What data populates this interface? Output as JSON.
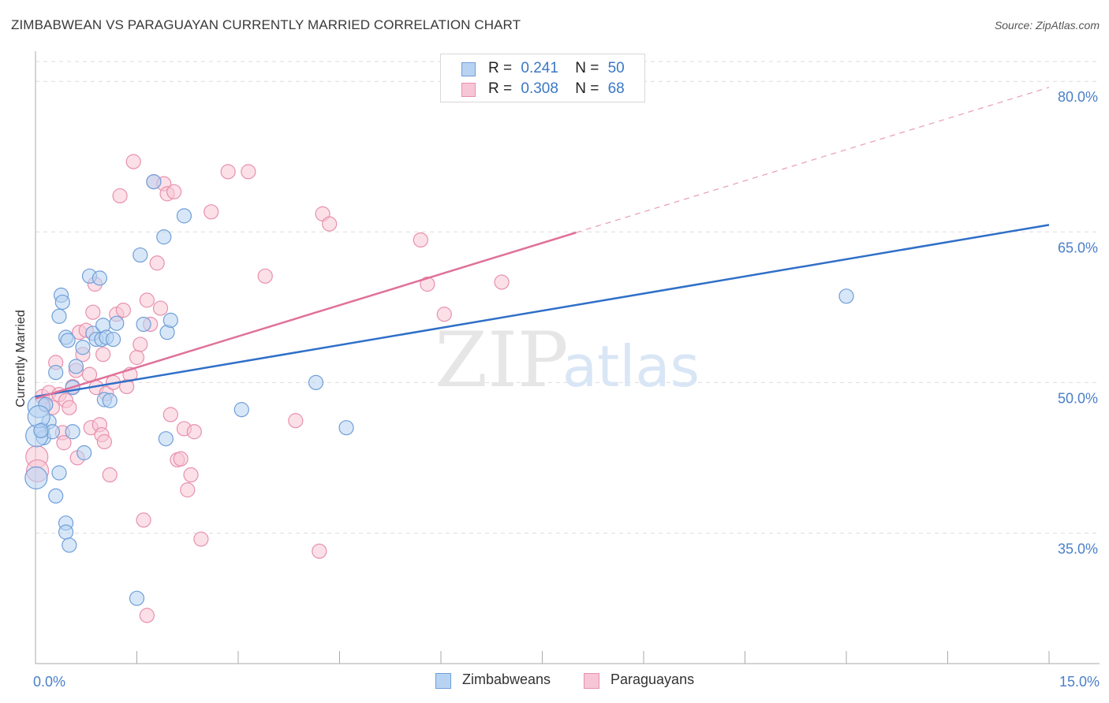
{
  "header": {
    "title": "ZIMBABWEAN VS PARAGUAYAN CURRENTLY MARRIED CORRELATION CHART",
    "source": "Source: ZipAtlas.com"
  },
  "watermark": {
    "zip": "ZIP",
    "atlas": "atlas"
  },
  "legend": {
    "r_label": "R =",
    "n_label": "N =",
    "rows": [
      {
        "r": "0.241",
        "n": "50"
      },
      {
        "r": "0.308",
        "n": "68"
      }
    ]
  },
  "colors": {
    "blue_fill": "#b8d3f2",
    "blue_stroke": "#6f9fd8",
    "blue_line": "#2f6fc8",
    "pink_fill": "#f7c6d6",
    "pink_stroke": "#e890ae",
    "pink_line": "#e0719a",
    "tick_label": "#4a7fc9",
    "grid": "#dddddd"
  },
  "chart_data": {
    "type": "scatter",
    "title": "ZIMBABWEAN VS PARAGUAYAN CURRENTLY MARRIED CORRELATION CHART",
    "xlabel": "",
    "ylabel": "Currently Married",
    "xlim": [
      0,
      15
    ],
    "ylim": [
      22,
      83
    ],
    "x_tick_labels": [
      "0.0%",
      "15.0%"
    ],
    "y_ticks": [
      35,
      50,
      65,
      80
    ],
    "y_tick_labels": [
      "35.0%",
      "50.0%",
      "65.0%",
      "80.0%"
    ],
    "grid": true,
    "legend_position": "top-center",
    "series": [
      {
        "name": "Zimbabweans",
        "r": 0.241,
        "n": 50,
        "trend": {
          "x": [
            0,
            15
          ],
          "y": [
            48.6,
            65.7
          ],
          "dashed_from": null
        },
        "points": [
          [
            0.05,
            47.6
          ],
          [
            0.1,
            45.3
          ],
          [
            0.12,
            44.5
          ],
          [
            0.15,
            47.8
          ],
          [
            0.2,
            46.1
          ],
          [
            0.25,
            45.1
          ],
          [
            0.3,
            38.7
          ],
          [
            0.35,
            41.0
          ],
          [
            0.3,
            51.0
          ],
          [
            0.35,
            56.6
          ],
          [
            0.38,
            58.7
          ],
          [
            0.4,
            58.0
          ],
          [
            0.45,
            54.5
          ],
          [
            0.48,
            54.2
          ],
          [
            0.55,
            45.1
          ],
          [
            0.55,
            49.5
          ],
          [
            0.6,
            51.6
          ],
          [
            0.7,
            53.5
          ],
          [
            0.72,
            43.0
          ],
          [
            0.8,
            60.6
          ],
          [
            0.85,
            54.9
          ],
          [
            0.9,
            54.3
          ],
          [
            0.95,
            60.4
          ],
          [
            0.98,
            54.3
          ],
          [
            1.0,
            55.7
          ],
          [
            1.02,
            48.3
          ],
          [
            1.05,
            54.5
          ],
          [
            1.1,
            48.2
          ],
          [
            1.15,
            54.3
          ],
          [
            1.2,
            55.9
          ],
          [
            0.45,
            36.0
          ],
          [
            0.45,
            35.1
          ],
          [
            0.5,
            33.8
          ],
          [
            1.55,
            62.7
          ],
          [
            1.6,
            55.8
          ],
          [
            1.75,
            70.0
          ],
          [
            1.9,
            64.5
          ],
          [
            1.93,
            44.4
          ],
          [
            1.95,
            55.0
          ],
          [
            2.0,
            56.2
          ],
          [
            2.2,
            66.6
          ],
          [
            3.05,
            47.3
          ],
          [
            4.15,
            50.0
          ],
          [
            4.6,
            45.5
          ],
          [
            12.0,
            58.6
          ],
          [
            1.5,
            28.5
          ],
          [
            0.01,
            40.5
          ],
          [
            0.02,
            44.7
          ],
          [
            0.05,
            46.6
          ],
          [
            0.08,
            45.2
          ]
        ]
      },
      {
        "name": "Paraguayans",
        "r": 0.308,
        "n": 68,
        "trend": {
          "x": [
            0,
            15
          ],
          "y": [
            48.4,
            79.4
          ],
          "dashed_from": 8.0
        },
        "points": [
          [
            0.02,
            42.6
          ],
          [
            0.03,
            41.2
          ],
          [
            0.1,
            48.6
          ],
          [
            0.15,
            47.8
          ],
          [
            0.2,
            49.0
          ],
          [
            0.25,
            47.5
          ],
          [
            0.3,
            52.0
          ],
          [
            0.35,
            48.8
          ],
          [
            0.4,
            45.0
          ],
          [
            0.42,
            44.0
          ],
          [
            0.45,
            48.2
          ],
          [
            0.5,
            47.5
          ],
          [
            0.55,
            49.6
          ],
          [
            0.6,
            51.2
          ],
          [
            0.62,
            42.5
          ],
          [
            0.65,
            55.0
          ],
          [
            0.7,
            52.8
          ],
          [
            0.75,
            55.2
          ],
          [
            0.8,
            50.8
          ],
          [
            0.82,
            45.5
          ],
          [
            0.85,
            57.0
          ],
          [
            0.88,
            59.8
          ],
          [
            0.9,
            49.5
          ],
          [
            0.95,
            45.8
          ],
          [
            0.98,
            44.8
          ],
          [
            1.0,
            52.8
          ],
          [
            1.02,
            44.1
          ],
          [
            1.05,
            48.9
          ],
          [
            1.1,
            40.8
          ],
          [
            1.15,
            50.0
          ],
          [
            1.2,
            56.8
          ],
          [
            1.25,
            68.6
          ],
          [
            1.3,
            57.2
          ],
          [
            1.35,
            49.6
          ],
          [
            1.4,
            50.8
          ],
          [
            1.45,
            72.0
          ],
          [
            1.5,
            52.5
          ],
          [
            1.55,
            53.8
          ],
          [
            1.6,
            36.3
          ],
          [
            1.65,
            58.2
          ],
          [
            1.7,
            55.8
          ],
          [
            1.75,
            70.0
          ],
          [
            1.8,
            61.9
          ],
          [
            1.85,
            57.4
          ],
          [
            1.9,
            69.8
          ],
          [
            1.95,
            68.8
          ],
          [
            2.0,
            46.8
          ],
          [
            2.05,
            69.0
          ],
          [
            2.1,
            42.3
          ],
          [
            2.15,
            42.4
          ],
          [
            2.2,
            45.4
          ],
          [
            2.25,
            39.3
          ],
          [
            2.3,
            40.8
          ],
          [
            2.35,
            45.1
          ],
          [
            2.45,
            34.4
          ],
          [
            2.6,
            67.0
          ],
          [
            2.85,
            71.0
          ],
          [
            3.15,
            71.0
          ],
          [
            3.4,
            60.6
          ],
          [
            3.85,
            46.2
          ],
          [
            4.2,
            33.2
          ],
          [
            4.25,
            66.8
          ],
          [
            4.35,
            65.8
          ],
          [
            5.7,
            64.2
          ],
          [
            5.8,
            59.8
          ],
          [
            6.05,
            56.8
          ],
          [
            6.9,
            60.0
          ],
          [
            1.65,
            26.8
          ]
        ]
      }
    ]
  },
  "bottom_legend": [
    {
      "name": "Zimbabweans"
    },
    {
      "name": "Paraguayans"
    }
  ]
}
